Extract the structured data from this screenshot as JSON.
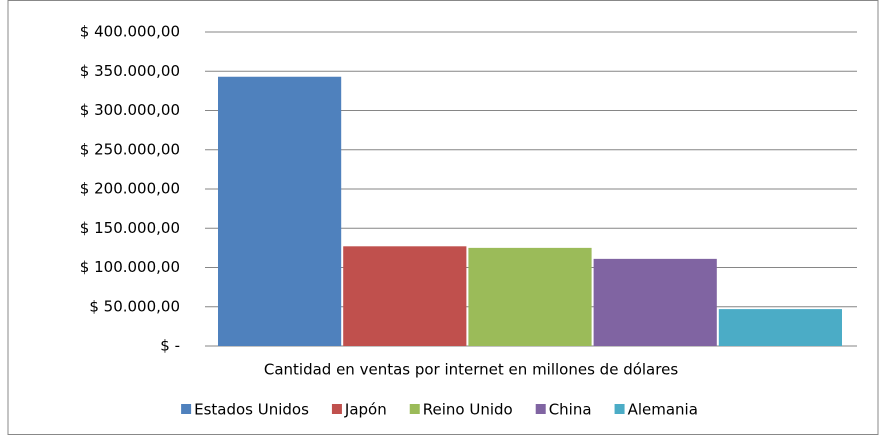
{
  "chart_data": {
    "type": "bar",
    "categories": [
      "Cantidad  en ventas por internet en millones de dólares"
    ],
    "series": [
      {
        "name": "Estados Unidos",
        "color": "#4f81bd",
        "values": [
          343000
        ]
      },
      {
        "name": "Japón",
        "color": "#c0504d",
        "values": [
          127000
        ]
      },
      {
        "name": "Reino Unido",
        "color": "#9bbb59",
        "values": [
          125000
        ]
      },
      {
        "name": "China",
        "color": "#8064a2",
        "values": [
          111000
        ]
      },
      {
        "name": "Alemania",
        "color": "#4bacc6",
        "values": [
          47000
        ]
      }
    ],
    "ylim": [
      0,
      400000
    ],
    "yticks": [
      {
        "value": 0,
        "label": "$ -"
      },
      {
        "value": 50000,
        "label": "$ 50.000,00"
      },
      {
        "value": 100000,
        "label": "$ 100.000,00"
      },
      {
        "value": 150000,
        "label": "$ 150.000,00"
      },
      {
        "value": 200000,
        "label": "$ 200.000,00"
      },
      {
        "value": 250000,
        "label": "$ 250.000,00"
      },
      {
        "value": 300000,
        "label": "$ 300.000,00"
      },
      {
        "value": 350000,
        "label": "$ 350.000,00"
      },
      {
        "value": 400000,
        "label": "$ 400.000,00"
      }
    ],
    "grid": true,
    "legend": "bottom"
  }
}
